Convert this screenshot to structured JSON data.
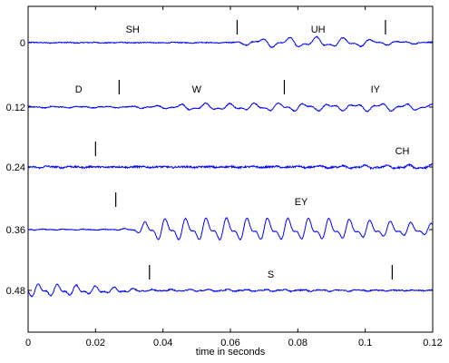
{
  "chart_data": {
    "type": "line",
    "title": "",
    "xlabel": "time in seconds",
    "ylabel": "",
    "xlim": [
      0,
      0.12
    ],
    "x_ticks": [
      "0",
      "0.02",
      "0.04",
      "0.06",
      "0.08",
      "0.1",
      "0.12"
    ],
    "y_ticks": [
      "0",
      "0.12",
      "0.24",
      "0.36",
      "0.48"
    ],
    "grid": false,
    "line_color": "#0000ff",
    "rows": [
      {
        "offset_label": "0",
        "boundaries": [
          0.062,
          0.106
        ],
        "labels": [
          {
            "text": "SH",
            "x": 0.031
          },
          {
            "text": "UH",
            "x": 0.086
          }
        ],
        "envelope": [
          [
            0,
            0.4
          ],
          [
            0.06,
            0.4
          ],
          [
            0.062,
            1.5
          ],
          [
            0.07,
            5.5
          ],
          [
            0.085,
            6.5
          ],
          [
            0.096,
            5.5
          ],
          [
            0.105,
            3.0
          ],
          [
            0.11,
            2.0
          ],
          [
            0.12,
            1.0
          ]
        ],
        "noise": 0.5
      },
      {
        "offset_label": "0.12",
        "boundaries": [
          0.027,
          0.076
        ],
        "labels": [
          {
            "text": "D",
            "x": 0.015
          },
          {
            "text": "W",
            "x": 0.05
          },
          {
            "text": "IY",
            "x": 0.103
          }
        ],
        "envelope": [
          [
            0,
            1.0
          ],
          [
            0.027,
            0.8
          ],
          [
            0.04,
            2.0
          ],
          [
            0.05,
            4.5
          ],
          [
            0.06,
            4.0
          ],
          [
            0.076,
            5.0
          ],
          [
            0.09,
            4.0
          ],
          [
            0.105,
            5.0
          ],
          [
            0.12,
            3.0
          ]
        ],
        "noise": 0.5
      },
      {
        "offset_label": "0.24",
        "boundaries": [
          0.02
        ],
        "labels": [
          {
            "text": "CH",
            "x": 0.111
          }
        ],
        "envelope": [
          [
            0,
            1.2
          ],
          [
            0.01,
            1.0
          ],
          [
            0.02,
            0.5
          ],
          [
            0.06,
            0.6
          ],
          [
            0.08,
            1.0
          ],
          [
            0.1,
            2.0
          ],
          [
            0.12,
            2.5
          ]
        ],
        "noise": 0.9
      },
      {
        "offset_label": "0.36",
        "boundaries": [
          0.026
        ],
        "labels": [
          {
            "text": "EY",
            "x": 0.081
          }
        ],
        "envelope": [
          [
            0,
            0.6
          ],
          [
            0.026,
            0.5
          ],
          [
            0.032,
            2.5
          ],
          [
            0.036,
            13
          ],
          [
            0.06,
            14
          ],
          [
            0.09,
            13
          ],
          [
            0.11,
            9
          ],
          [
            0.12,
            7
          ]
        ],
        "noise": 0.4
      },
      {
        "offset_label": "0.48",
        "boundaries": [
          0.036,
          0.108
        ],
        "labels": [
          {
            "text": "S",
            "x": 0.072
          }
        ],
        "envelope": [
          [
            0,
            8.0
          ],
          [
            0.01,
            7.0
          ],
          [
            0.02,
            5.0
          ],
          [
            0.03,
            2.5
          ],
          [
            0.036,
            1.2
          ],
          [
            0.06,
            1.2
          ],
          [
            0.1,
            1.0
          ],
          [
            0.108,
            0.6
          ],
          [
            0.12,
            0.3
          ]
        ],
        "noise": 0.6
      }
    ]
  }
}
